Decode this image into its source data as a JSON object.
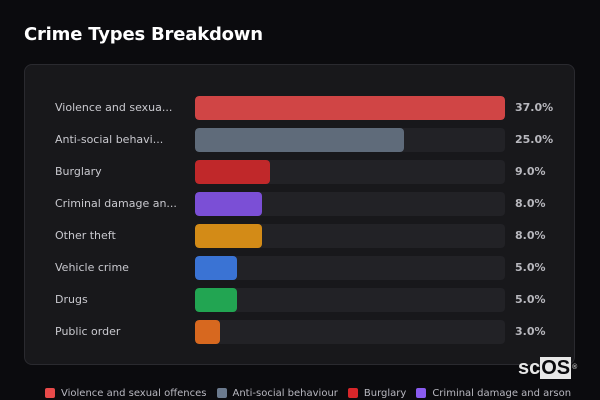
{
  "title": "Crime Types Breakdown",
  "watermark": {
    "prefix": "sc",
    "boxed": "OS",
    "mark": "®"
  },
  "chart_data": {
    "type": "bar",
    "orientation": "horizontal",
    "title": "Crime Types Breakdown",
    "xlabel": "",
    "ylabel": "",
    "xlim": [
      0,
      37
    ],
    "grid": false,
    "legend_position": "bottom",
    "categories": [
      "Violence and sexual offences",
      "Anti-social behaviour",
      "Burglary",
      "Criminal damage and arson",
      "Other theft",
      "Vehicle crime",
      "Drugs",
      "Public order"
    ],
    "display_labels": [
      "Violence and sexua...",
      "Anti-social behavi...",
      "Burglary",
      "Criminal damage an...",
      "Other theft",
      "Vehicle crime",
      "Drugs",
      "Public order"
    ],
    "values": [
      37.0,
      25.0,
      9.0,
      8.0,
      8.0,
      5.0,
      5.0,
      3.0
    ],
    "value_labels": [
      "37.0%",
      "25.0%",
      "9.0%",
      "8.0%",
      "8.0%",
      "5.0%",
      "5.0%",
      "3.0%"
    ],
    "colors": [
      "#d04545",
      "#5f6b7a",
      "#c0282a",
      "#7b4fd6",
      "#d38b17",
      "#3a73d4",
      "#22a552",
      "#d7681f"
    ]
  },
  "rows": [
    {
      "label": "Violence and sexua...",
      "pct": "37.0%",
      "value": 37.0,
      "color": "#d04545"
    },
    {
      "label": "Anti-social behavi...",
      "pct": "25.0%",
      "value": 25.0,
      "color": "#5f6b7a"
    },
    {
      "label": "Burglary",
      "pct": "9.0%",
      "value": 9.0,
      "color": "#c0282a"
    },
    {
      "label": "Criminal damage an...",
      "pct": "8.0%",
      "value": 8.0,
      "color": "#7b4fd6"
    },
    {
      "label": "Other theft",
      "pct": "8.0%",
      "value": 8.0,
      "color": "#d38b17"
    },
    {
      "label": "Vehicle crime",
      "pct": "5.0%",
      "value": 5.0,
      "color": "#3a73d4"
    },
    {
      "label": "Drugs",
      "pct": "5.0%",
      "value": 5.0,
      "color": "#22a552"
    },
    {
      "label": "Public order",
      "pct": "3.0%",
      "value": 3.0,
      "color": "#d7681f"
    }
  ],
  "legend": [
    {
      "label": "Violence and sexual offences",
      "color": "#e84a4a"
    },
    {
      "label": "Anti-social behaviour",
      "color": "#6b7a8e"
    },
    {
      "label": "Burglary",
      "color": "#d8262a"
    },
    {
      "label": "Criminal damage and arson",
      "color": "#8a5cf0"
    }
  ]
}
